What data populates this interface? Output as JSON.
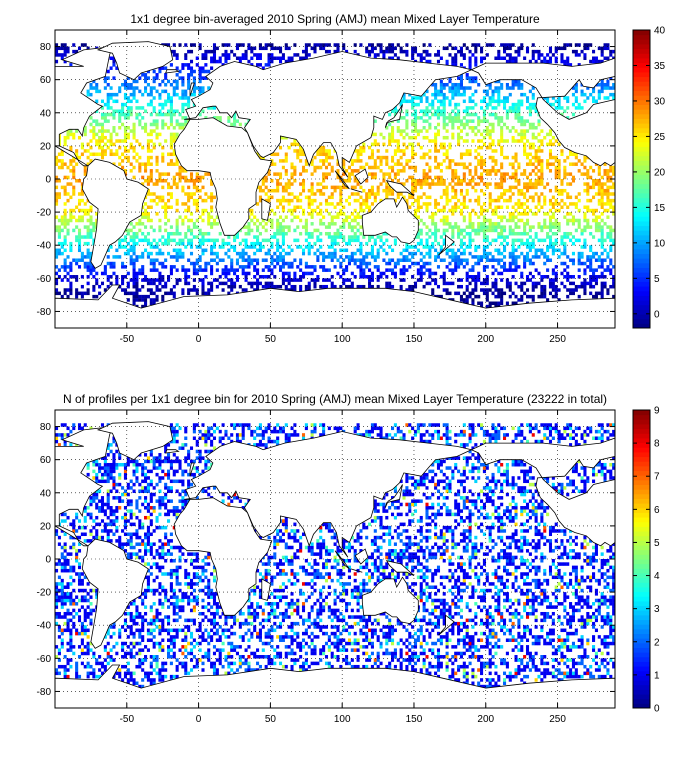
{
  "chart_data": [
    {
      "type": "heatmap",
      "title": "1x1 degree bin-averaged 2010 Spring (AMJ) mean Mixed Layer Temperature",
      "xlim": [
        -100,
        290
      ],
      "ylim": [
        -90,
        90
      ],
      "xticks": [
        -50,
        0,
        50,
        100,
        150,
        200,
        250
      ],
      "yticks": [
        -80,
        -60,
        -40,
        -20,
        0,
        20,
        40,
        60,
        80
      ],
      "grid": true,
      "colorbar": {
        "min": -2,
        "max": 40,
        "ticks": [
          0,
          5,
          10,
          15,
          20,
          25,
          30,
          35,
          40
        ],
        "colormap": "jet"
      },
      "values": [
        {
          "lat": 80,
          "value": -1
        },
        {
          "lat": 60,
          "value": 6
        },
        {
          "lat": 40,
          "value": 16
        },
        {
          "lat": 20,
          "value": 25
        },
        {
          "lat": 0,
          "value": 28
        },
        {
          "lat": -20,
          "value": 25
        },
        {
          "lat": -40,
          "value": 14
        },
        {
          "lat": -60,
          "value": 2
        },
        {
          "lat": -70,
          "value": -1
        }
      ]
    },
    {
      "type": "heatmap",
      "title": "N of profiles per 1x1 degree bin for 2010 Spring (AMJ) mean Mixed Layer Temperature  (23222 in total)",
      "xlim": [
        -100,
        290
      ],
      "ylim": [
        -90,
        90
      ],
      "xticks": [
        -50,
        0,
        50,
        100,
        150,
        200,
        250
      ],
      "yticks": [
        -80,
        -60,
        -40,
        -20,
        0,
        20,
        40,
        60,
        80
      ],
      "grid": true,
      "total_profiles": 23222,
      "colorbar": {
        "min": 0,
        "max": 9,
        "ticks": [
          0,
          1,
          2,
          3,
          4,
          5,
          6,
          7,
          8,
          9
        ],
        "colormap": "jet"
      },
      "typical_count_range": [
        1,
        3
      ],
      "max_count": 9
    }
  ],
  "colors": {
    "axis": "#000000",
    "grid": "#000000",
    "land_outline": "#000000"
  }
}
